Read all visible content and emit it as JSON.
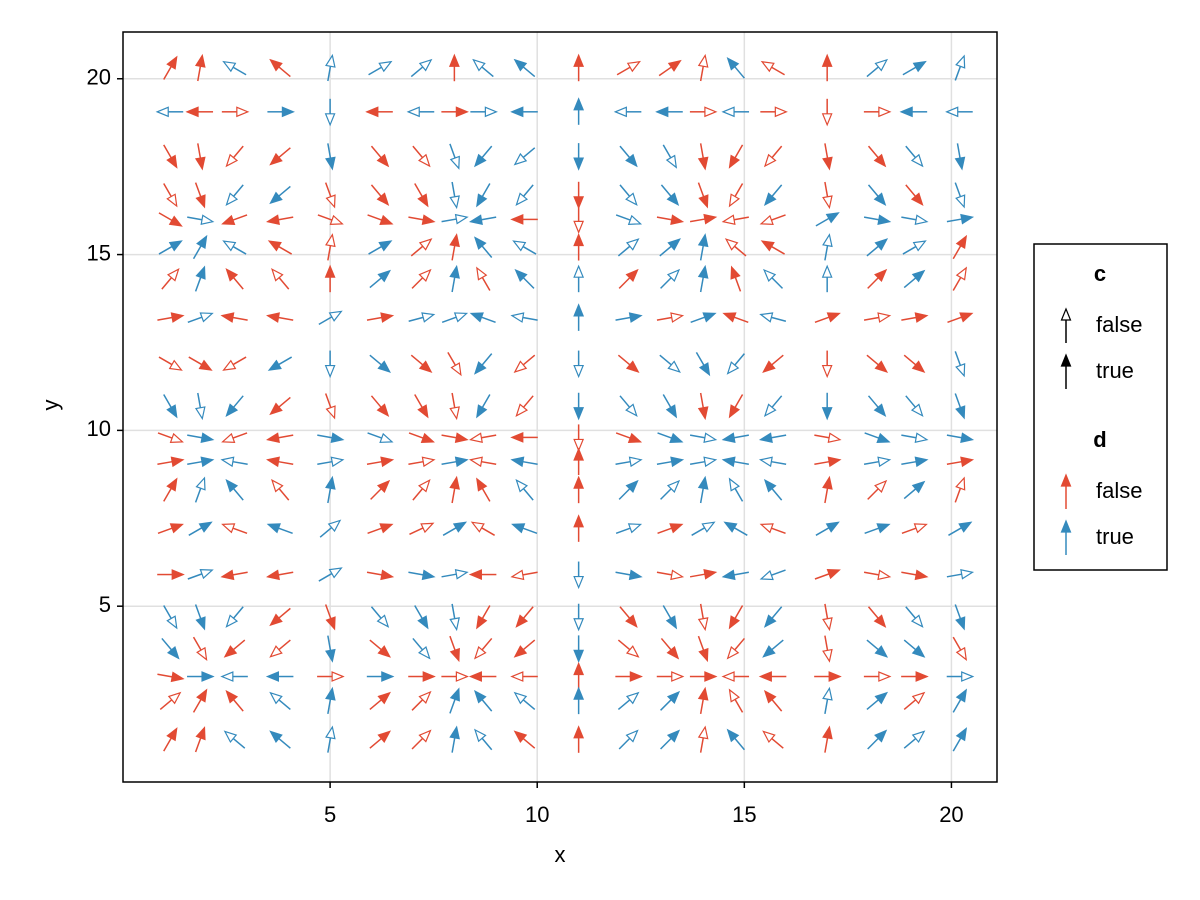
{
  "chart_data": {
    "type": "quiver",
    "xlabel": "x",
    "ylabel": "y",
    "xlim": [
      0,
      21.1
    ],
    "ylim": [
      0,
      21.33
    ],
    "xticks": [
      5,
      10,
      15,
      20
    ],
    "yticks": [
      5,
      10,
      15,
      20
    ],
    "grid": true,
    "d_colors": [
      "#e24a33",
      "#348abd"
    ],
    "legend": [
      {
        "title": "c",
        "entries": [
          "false",
          "true"
        ]
      },
      {
        "title": "d",
        "entries": [
          "false",
          "true"
        ]
      }
    ],
    "x": [
      1.14,
      1.86,
      2.7,
      3.8,
      5.0,
      6.2,
      7.2,
      8.0,
      8.7,
      9.7,
      11.0,
      12.2,
      13.2,
      14.0,
      14.8,
      15.7,
      17.0,
      18.2,
      19.1,
      20.2
    ],
    "y": [
      20.3,
      19.06,
      17.8,
      16.7,
      16.0,
      15.2,
      14.3,
      13.2,
      11.9,
      10.7,
      9.8,
      9.1,
      8.3,
      7.2,
      5.9,
      4.7,
      3.8,
      3.0,
      2.3,
      1.2
    ],
    "angle": [
      [
        60,
        80,
        150,
        140,
        80,
        30,
        40,
        90,
        140,
        140,
        90,
        30,
        35,
        80,
        130,
        150,
        90,
        40,
        30,
        70
      ],
      [
        180,
        180,
        0,
        0,
        270,
        180,
        180,
        0,
        0,
        180,
        90,
        180,
        180,
        0,
        180,
        0,
        270,
        0,
        180,
        180
      ],
      [
        300,
        280,
        230,
        220,
        280,
        310,
        310,
        290,
        230,
        220,
        270,
        310,
        300,
        280,
        240,
        230,
        280,
        310,
        310,
        280
      ],
      [
        300,
        290,
        230,
        220,
        290,
        310,
        300,
        280,
        240,
        230,
        270,
        310,
        310,
        290,
        240,
        230,
        280,
        310,
        310,
        290
      ],
      [
        330,
        350,
        200,
        190,
        340,
        340,
        350,
        10,
        190,
        180,
        270,
        340,
        350,
        10,
        190,
        200,
        30,
        350,
        350,
        10
      ],
      [
        30,
        60,
        150,
        150,
        80,
        30,
        40,
        80,
        130,
        150,
        90,
        40,
        40,
        80,
        140,
        150,
        80,
        40,
        30,
        60
      ],
      [
        50,
        70,
        130,
        130,
        90,
        40,
        45,
        80,
        120,
        135,
        90,
        45,
        45,
        80,
        110,
        135,
        90,
        45,
        40,
        60
      ],
      [
        10,
        20,
        170,
        170,
        30,
        10,
        15,
        20,
        160,
        170,
        90,
        10,
        10,
        20,
        160,
        165,
        20,
        10,
        10,
        20
      ],
      [
        330,
        330,
        210,
        210,
        270,
        320,
        320,
        300,
        230,
        220,
        270,
        320,
        320,
        300,
        230,
        220,
        270,
        320,
        320,
        290
      ],
      [
        300,
        280,
        230,
        220,
        290,
        310,
        300,
        280,
        240,
        230,
        270,
        310,
        300,
        280,
        240,
        230,
        270,
        310,
        310,
        290
      ],
      [
        340,
        350,
        200,
        190,
        350,
        340,
        340,
        350,
        190,
        180,
        270,
        340,
        340,
        350,
        190,
        190,
        350,
        340,
        350,
        350
      ],
      [
        10,
        10,
        170,
        170,
        10,
        10,
        10,
        10,
        170,
        170,
        90,
        10,
        10,
        10,
        170,
        170,
        10,
        10,
        10,
        10
      ],
      [
        60,
        70,
        130,
        130,
        80,
        45,
        50,
        80,
        120,
        130,
        90,
        45,
        45,
        80,
        120,
        130,
        80,
        45,
        40,
        70
      ],
      [
        20,
        30,
        160,
        160,
        40,
        20,
        25,
        30,
        150,
        160,
        90,
        20,
        20,
        30,
        150,
        160,
        30,
        20,
        20,
        30
      ],
      [
        0,
        20,
        190,
        190,
        30,
        350,
        350,
        10,
        180,
        190,
        270,
        350,
        350,
        10,
        190,
        200,
        20,
        350,
        350,
        10
      ],
      [
        300,
        290,
        230,
        220,
        290,
        310,
        300,
        280,
        240,
        230,
        270,
        310,
        300,
        280,
        240,
        230,
        280,
        310,
        310,
        290
      ],
      [
        310,
        300,
        220,
        220,
        280,
        320,
        310,
        290,
        230,
        220,
        270,
        320,
        310,
        290,
        230,
        220,
        280,
        320,
        320,
        300
      ],
      [
        350,
        0,
        180,
        180,
        0,
        0,
        0,
        0,
        180,
        180,
        90,
        0,
        0,
        0,
        180,
        180,
        0,
        0,
        0,
        0
      ],
      [
        40,
        60,
        130,
        140,
        80,
        40,
        45,
        70,
        130,
        140,
        90,
        40,
        45,
        80,
        120,
        130,
        80,
        40,
        40,
        60
      ],
      [
        60,
        70,
        140,
        140,
        80,
        40,
        45,
        80,
        130,
        140,
        90,
        45,
        45,
        80,
        130,
        140,
        80,
        45,
        40,
        60
      ]
    ],
    "d": [
      [
        0,
        0,
        1,
        0,
        1,
        1,
        1,
        0,
        1,
        1,
        0,
        0,
        0,
        0,
        1,
        0,
        0,
        1,
        1,
        1
      ],
      [
        1,
        0,
        0,
        1,
        1,
        0,
        1,
        0,
        1,
        1,
        1,
        1,
        1,
        0,
        1,
        0,
        0,
        0,
        1,
        1
      ],
      [
        0,
        0,
        0,
        0,
        1,
        0,
        0,
        1,
        1,
        1,
        1,
        1,
        1,
        0,
        0,
        0,
        0,
        0,
        1,
        1
      ],
      [
        0,
        0,
        1,
        1,
        0,
        0,
        0,
        1,
        1,
        1,
        0,
        1,
        1,
        0,
        0,
        1,
        0,
        1,
        0,
        1
      ],
      [
        0,
        1,
        0,
        0,
        0,
        0,
        0,
        1,
        1,
        0,
        0,
        1,
        0,
        0,
        0,
        0,
        1,
        1,
        1,
        1
      ],
      [
        1,
        1,
        1,
        0,
        0,
        1,
        0,
        0,
        1,
        1,
        0,
        1,
        1,
        1,
        0,
        0,
        1,
        1,
        1,
        0
      ],
      [
        0,
        1,
        0,
        0,
        0,
        1,
        0,
        1,
        0,
        1,
        1,
        0,
        1,
        1,
        0,
        1,
        1,
        0,
        1,
        0
      ],
      [
        0,
        1,
        0,
        0,
        1,
        0,
        1,
        1,
        1,
        1,
        1,
        1,
        0,
        1,
        0,
        1,
        0,
        0,
        0,
        0
      ],
      [
        0,
        0,
        0,
        1,
        1,
        1,
        0,
        0,
        1,
        0,
        1,
        0,
        1,
        1,
        1,
        0,
        0,
        0,
        0,
        1
      ],
      [
        1,
        1,
        1,
        0,
        0,
        0,
        0,
        0,
        1,
        0,
        1,
        1,
        1,
        0,
        0,
        1,
        1,
        1,
        1,
        1
      ],
      [
        0,
        1,
        0,
        0,
        1,
        1,
        0,
        0,
        0,
        0,
        0,
        0,
        1,
        1,
        1,
        1,
        0,
        1,
        1,
        1
      ],
      [
        0,
        1,
        1,
        0,
        1,
        0,
        0,
        1,
        0,
        1,
        0,
        1,
        1,
        1,
        1,
        1,
        0,
        1,
        1,
        0
      ],
      [
        0,
        1,
        1,
        0,
        1,
        0,
        0,
        0,
        0,
        1,
        0,
        1,
        1,
        1,
        1,
        1,
        0,
        0,
        1,
        0
      ],
      [
        0,
        1,
        0,
        1,
        1,
        0,
        0,
        1,
        0,
        1,
        0,
        1,
        0,
        1,
        1,
        0,
        1,
        1,
        0,
        1
      ],
      [
        0,
        1,
        0,
        0,
        1,
        0,
        1,
        1,
        0,
        0,
        1,
        1,
        0,
        0,
        1,
        1,
        0,
        0,
        0,
        1
      ],
      [
        1,
        1,
        1,
        0,
        0,
        1,
        1,
        1,
        0,
        0,
        1,
        0,
        1,
        0,
        0,
        1,
        0,
        0,
        1,
        1
      ],
      [
        1,
        0,
        0,
        0,
        1,
        0,
        1,
        0,
        0,
        0,
        1,
        0,
        0,
        0,
        0,
        1,
        0,
        1,
        1,
        0
      ],
      [
        0,
        1,
        1,
        1,
        0,
        1,
        0,
        0,
        0,
        0,
        0,
        0,
        0,
        0,
        0,
        0,
        0,
        0,
        0,
        1
      ],
      [
        0,
        0,
        0,
        1,
        1,
        0,
        0,
        1,
        1,
        1,
        1,
        1,
        1,
        0,
        0,
        0,
        1,
        1,
        0,
        1
      ],
      [
        0,
        0,
        1,
        1,
        1,
        0,
        0,
        1,
        1,
        0,
        0,
        1,
        1,
        0,
        1,
        0,
        0,
        1,
        1,
        1
      ]
    ],
    "c": [
      [
        1,
        1,
        0,
        1,
        0,
        0,
        0,
        1,
        0,
        1,
        1,
        0,
        1,
        0,
        1,
        0,
        1,
        0,
        1,
        0
      ],
      [
        0,
        1,
        0,
        1,
        0,
        1,
        0,
        1,
        0,
        1,
        1,
        0,
        1,
        0,
        0,
        0,
        0,
        0,
        1,
        0
      ],
      [
        1,
        1,
        0,
        1,
        1,
        1,
        0,
        0,
        1,
        0,
        1,
        1,
        0,
        1,
        1,
        0,
        1,
        1,
        0,
        1
      ],
      [
        0,
        1,
        0,
        1,
        0,
        1,
        1,
        0,
        1,
        0,
        1,
        0,
        1,
        1,
        0,
        1,
        0,
        1,
        1,
        0
      ],
      [
        1,
        0,
        1,
        1,
        0,
        1,
        1,
        0,
        1,
        1,
        0,
        0,
        1,
        1,
        0,
        0,
        1,
        1,
        0,
        1
      ],
      [
        1,
        1,
        0,
        1,
        0,
        1,
        0,
        1,
        1,
        0,
        1,
        0,
        1,
        1,
        0,
        1,
        0,
        1,
        0,
        1
      ],
      [
        0,
        1,
        1,
        0,
        1,
        1,
        0,
        1,
        0,
        1,
        0,
        1,
        0,
        1,
        1,
        0,
        0,
        1,
        1,
        0
      ],
      [
        1,
        0,
        1,
        1,
        0,
        1,
        0,
        0,
        1,
        0,
        1,
        1,
        0,
        1,
        1,
        0,
        1,
        0,
        1,
        1
      ],
      [
        0,
        1,
        0,
        1,
        0,
        1,
        1,
        0,
        1,
        0,
        0,
        1,
        0,
        1,
        0,
        1,
        0,
        1,
        1,
        0
      ],
      [
        1,
        0,
        1,
        1,
        0,
        1,
        1,
        0,
        1,
        0,
        1,
        0,
        1,
        1,
        1,
        0,
        1,
        1,
        0,
        1
      ],
      [
        0,
        1,
        0,
        1,
        1,
        0,
        1,
        1,
        0,
        1,
        0,
        1,
        1,
        0,
        1,
        1,
        0,
        1,
        0,
        1
      ],
      [
        1,
        1,
        0,
        1,
        0,
        1,
        0,
        1,
        0,
        1,
        1,
        0,
        1,
        0,
        1,
        0,
        1,
        0,
        1,
        1
      ],
      [
        1,
        0,
        1,
        0,
        1,
        1,
        0,
        1,
        1,
        0,
        1,
        1,
        0,
        1,
        0,
        1,
        1,
        0,
        1,
        0
      ],
      [
        1,
        1,
        0,
        1,
        0,
        1,
        0,
        1,
        0,
        1,
        1,
        0,
        1,
        0,
        1,
        0,
        1,
        1,
        0,
        1
      ],
      [
        1,
        0,
        1,
        1,
        0,
        1,
        1,
        0,
        1,
        0,
        0,
        1,
        0,
        1,
        1,
        0,
        1,
        0,
        1,
        0
      ],
      [
        0,
        1,
        0,
        1,
        1,
        0,
        1,
        0,
        1,
        1,
        0,
        1,
        1,
        0,
        1,
        1,
        0,
        1,
        0,
        1
      ],
      [
        1,
        0,
        1,
        0,
        1,
        1,
        0,
        1,
        0,
        1,
        1,
        0,
        1,
        1,
        0,
        1,
        0,
        1,
        1,
        0
      ],
      [
        1,
        1,
        0,
        1,
        0,
        1,
        1,
        0,
        1,
        0,
        1,
        1,
        0,
        1,
        0,
        1,
        1,
        0,
        1,
        0
      ],
      [
        0,
        1,
        1,
        0,
        1,
        1,
        0,
        1,
        1,
        0,
        1,
        0,
        1,
        1,
        0,
        1,
        0,
        1,
        0,
        1
      ],
      [
        1,
        1,
        0,
        1,
        0,
        1,
        0,
        1,
        0,
        1,
        1,
        0,
        1,
        0,
        1,
        0,
        1,
        1,
        0,
        1
      ]
    ]
  }
}
